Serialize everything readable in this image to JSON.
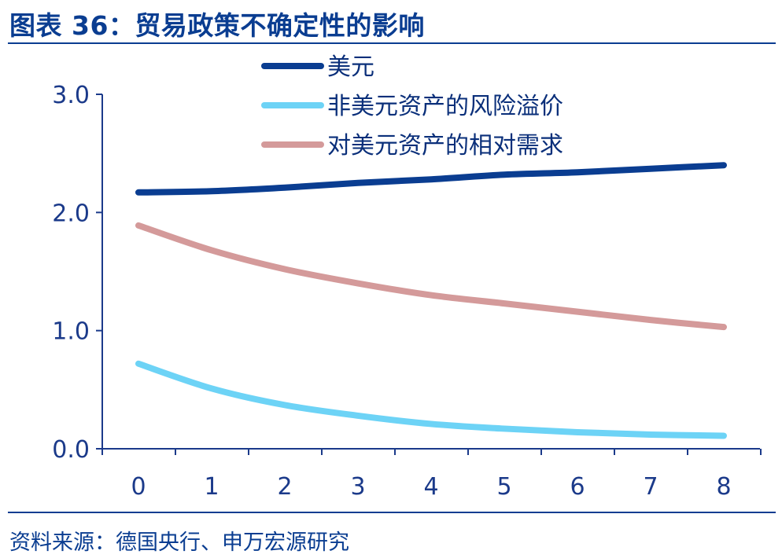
{
  "title": "图表 36：贸易政策不确定性的影响",
  "source": "资料来源：德国央行、申万宏源研究",
  "colors": {
    "brand": "#0a3d91",
    "axis": "#1b3a8a"
  },
  "chart_data": {
    "type": "line",
    "title": "",
    "xlabel": "",
    "ylabel": "",
    "x": [
      0,
      1,
      2,
      3,
      4,
      5,
      6,
      7,
      8
    ],
    "ylim": [
      0,
      3.0
    ],
    "yticks": [
      "0.0",
      "1.0",
      "2.0",
      "3.0"
    ],
    "xticks": [
      "0",
      "1",
      "2",
      "3",
      "4",
      "5",
      "6",
      "7",
      "8"
    ],
    "grid": false,
    "legend_position": "top",
    "series": [
      {
        "name": "美元",
        "color": "#0a3d91",
        "values": [
          2.17,
          2.18,
          2.21,
          2.25,
          2.28,
          2.32,
          2.34,
          2.37,
          2.4
        ]
      },
      {
        "name": "非美元资产的风险溢价",
        "color": "#6dd3f6",
        "values": [
          0.72,
          0.51,
          0.37,
          0.28,
          0.21,
          0.17,
          0.14,
          0.12,
          0.11
        ]
      },
      {
        "name": "对美元资产的相对需求",
        "color": "#d49a9a",
        "values": [
          1.89,
          1.68,
          1.52,
          1.4,
          1.3,
          1.23,
          1.16,
          1.09,
          1.03
        ]
      }
    ]
  }
}
